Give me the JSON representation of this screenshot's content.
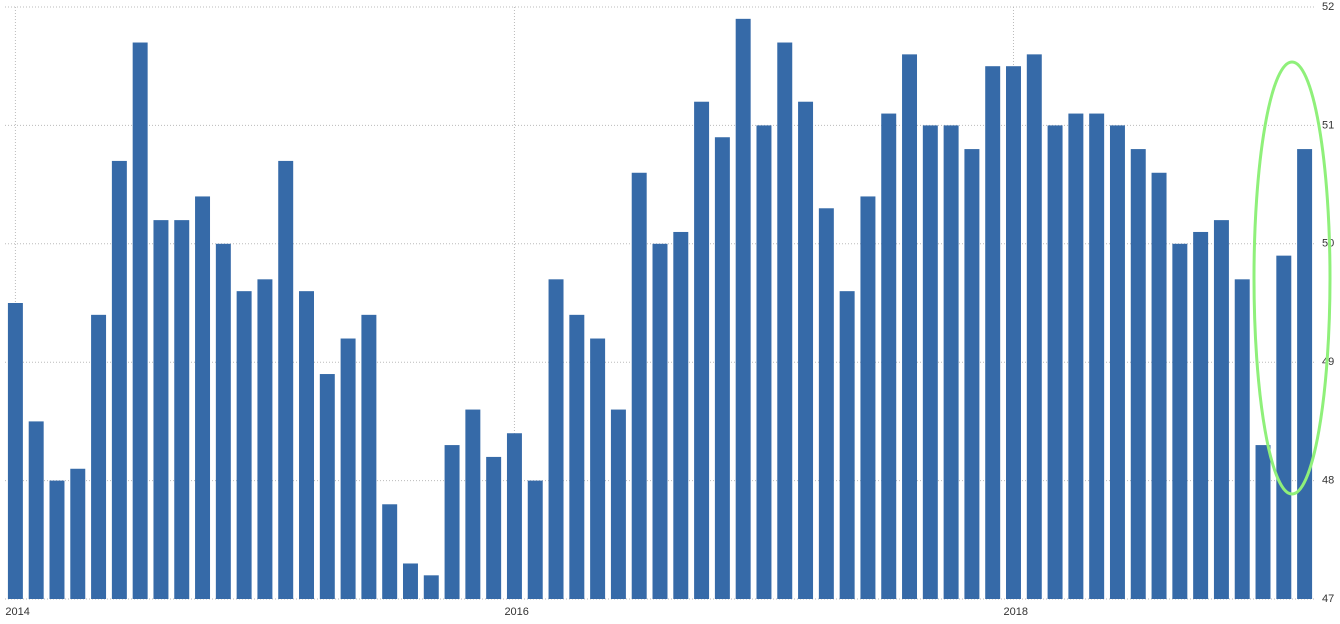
{
  "chart_data": {
    "type": "bar",
    "categories": [
      "2014",
      null,
      null,
      null,
      null,
      null,
      null,
      null,
      null,
      null,
      null,
      null,
      null,
      null,
      null,
      null,
      null,
      null,
      null,
      null,
      null,
      null,
      null,
      null,
      "2016",
      null,
      null,
      null,
      null,
      null,
      null,
      null,
      null,
      null,
      null,
      null,
      null,
      null,
      null,
      null,
      null,
      null,
      null,
      null,
      null,
      null,
      null,
      null,
      "2018",
      null,
      null,
      null,
      null,
      null,
      null,
      null,
      null,
      null,
      null,
      null,
      null,
      null,
      null
    ],
    "values": [
      49.5,
      48.5,
      48.0,
      48.1,
      49.4,
      50.7,
      51.7,
      50.2,
      50.2,
      50.4,
      50.0,
      49.6,
      49.7,
      50.7,
      49.6,
      48.9,
      49.2,
      49.4,
      47.8,
      47.3,
      47.2,
      48.3,
      48.6,
      48.2,
      48.4,
      48.0,
      49.7,
      49.4,
      49.2,
      48.6,
      50.6,
      50.0,
      50.1,
      51.2,
      50.9,
      51.9,
      51.0,
      51.7,
      51.2,
      50.3,
      49.6,
      50.4,
      51.1,
      51.6,
      51.0,
      51.0,
      50.8,
      51.5,
      51.5,
      51.6,
      51.0,
      51.1,
      51.1,
      51.0,
      50.8,
      50.6,
      50.0,
      50.1,
      50.2,
      49.7,
      48.3,
      49.9,
      50.8
    ],
    "color": "#366aa8",
    "ylim": [
      47,
      52
    ],
    "yticks": [
      47,
      48,
      49,
      50,
      51,
      52
    ],
    "grid": true
  }
}
